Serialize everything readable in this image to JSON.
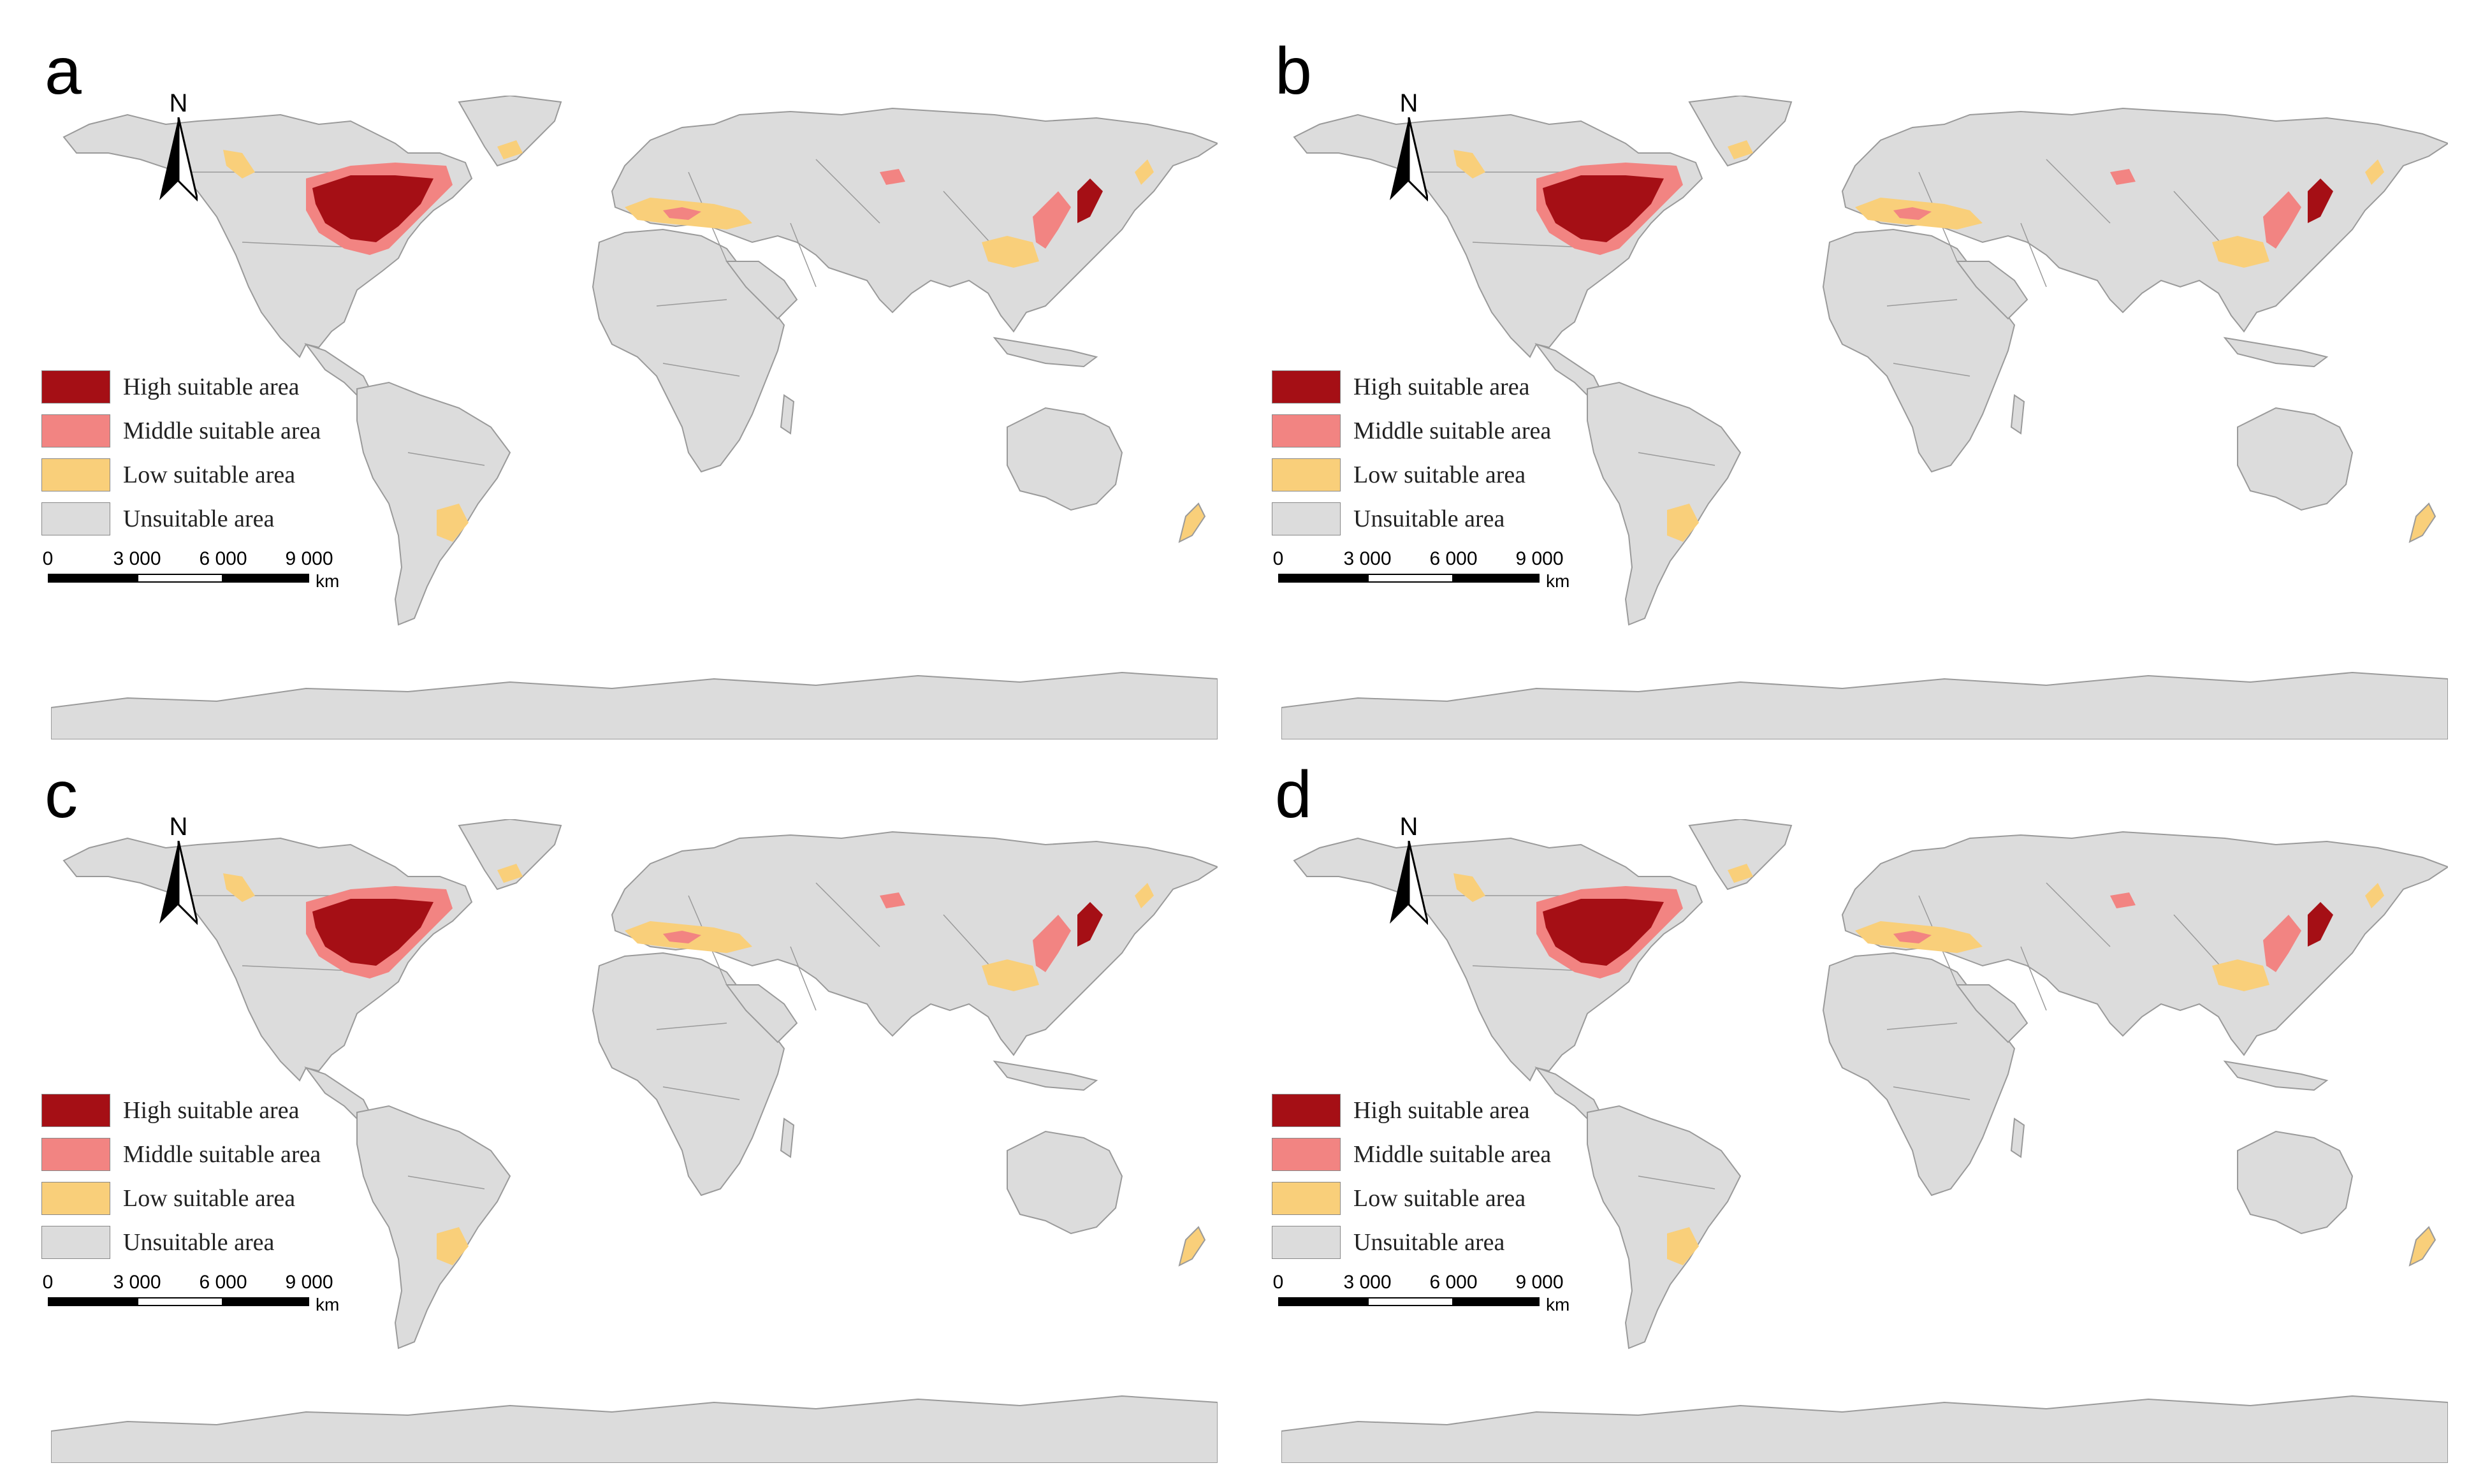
{
  "legend": {
    "items": [
      {
        "label": "High suitable area",
        "color": "#A50F15"
      },
      {
        "label": "Middle suitable area",
        "color": "#F28482"
      },
      {
        "label": "Low suitable area",
        "color": "#F9CF7A"
      },
      {
        "label": "Unsuitable area",
        "color": "#DCDCDC"
      }
    ]
  },
  "north_arrow": {
    "label": "N"
  },
  "scale_bar": {
    "ticks": [
      "0",
      "3 000",
      "6 000",
      "9 000"
    ],
    "unit": "km"
  },
  "panels": [
    {
      "letter": "a"
    },
    {
      "letter": "b"
    },
    {
      "letter": "c"
    },
    {
      "letter": "d"
    }
  ],
  "colors": {
    "land": "#DCDCDC",
    "border": "#9A9A9A",
    "high": "#A50F15",
    "middle": "#F28482",
    "low": "#F9CF7A"
  }
}
